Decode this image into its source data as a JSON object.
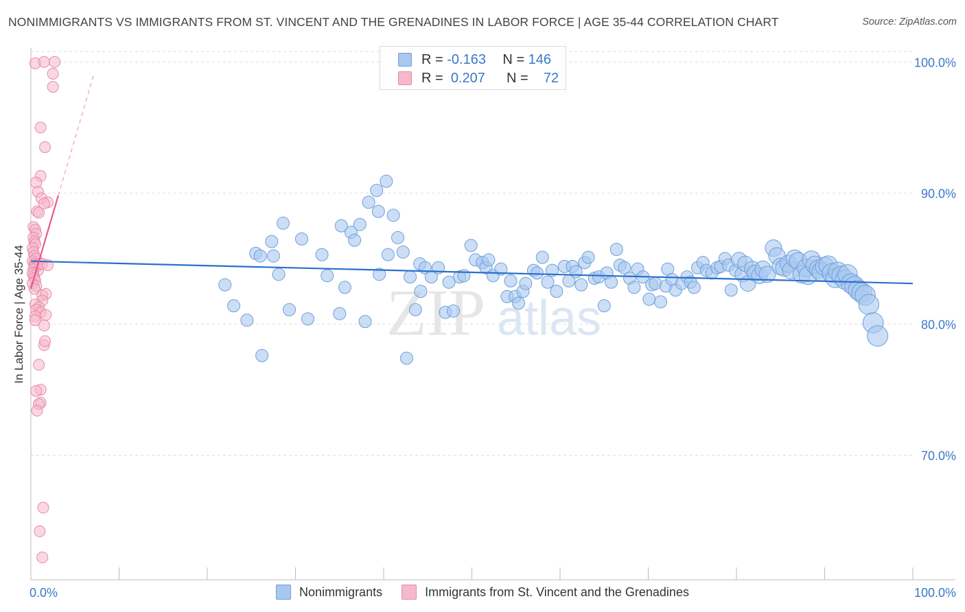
{
  "title": "NONIMMIGRANTS VS IMMIGRANTS FROM ST. VINCENT AND THE GRENADINES IN LABOR FORCE | AGE 35-44 CORRELATION CHART",
  "source": "Source: ZipAtlas.com",
  "watermark": {
    "zip": "ZIP",
    "atlas": "atlas"
  },
  "colors": {
    "blue_fill": "#a8c8f0",
    "blue_stroke": "#6e9fd8",
    "blue_line": "#2a6fcb",
    "pink_fill": "#f6b8cb",
    "pink_stroke": "#e88aa8",
    "pink_line": "#e8588a",
    "axis_label": "#3a78c9",
    "grid": "#dddddd"
  },
  "legend": {
    "series": [
      {
        "r_label": "R =",
        "r_value": "-0.163",
        "n_label": "N =",
        "n_value": "146"
      },
      {
        "r_label": "R =",
        "r_value": "0.207",
        "n_label": "N =",
        "n_value": "72"
      }
    ]
  },
  "chart_data": {
    "type": "scatter",
    "title": "NONIMMIGRANTS VS IMMIGRANTS FROM ST. VINCENT AND THE GRENADINES IN LABOR FORCE | AGE 35-44 CORRELATION CHART",
    "xlabel": "",
    "ylabel": "In Labor Force | Age 35-44",
    "xlim": [
      0,
      100
    ],
    "ylim": [
      60.5,
      100.8
    ],
    "x_tick_labels": [
      "0.0%",
      "100.0%"
    ],
    "y_ticks": [
      70,
      80,
      90,
      100
    ],
    "y_tick_labels": [
      "70.0%",
      "80.0%",
      "90.0%",
      "100.0%"
    ],
    "grid": "horizontal dashed",
    "legend_position": "top-center",
    "series": [
      {
        "name": "Nonimmigrants",
        "trend": {
          "x": [
            0,
            100
          ],
          "y": [
            84.8,
            83.1
          ]
        },
        "points": [
          [
            22,
            83
          ],
          [
            23,
            81.4
          ],
          [
            24.5,
            80.3
          ],
          [
            25.5,
            85.4
          ],
          [
            26,
            85.2
          ],
          [
            27.3,
            86.3
          ],
          [
            26.2,
            77.6
          ],
          [
            27.5,
            85.2
          ],
          [
            28.1,
            83.8
          ],
          [
            28.6,
            87.7
          ],
          [
            29.3,
            81.1
          ],
          [
            30.7,
            86.5
          ],
          [
            31.4,
            80.4
          ],
          [
            33,
            85.3
          ],
          [
            33.6,
            83.7
          ],
          [
            35,
            80.8
          ],
          [
            35.2,
            87.5
          ],
          [
            35.6,
            82.8
          ],
          [
            36.3,
            87
          ],
          [
            36.7,
            86.4
          ],
          [
            37.3,
            87.6
          ],
          [
            37.9,
            80.2
          ],
          [
            38.3,
            89.3
          ],
          [
            39.2,
            90.2
          ],
          [
            39.4,
            88.6
          ],
          [
            39.5,
            83.8
          ],
          [
            40.3,
            90.9
          ],
          [
            40.5,
            85.3
          ],
          [
            41.1,
            88.3
          ],
          [
            41.6,
            86.6
          ],
          [
            42.2,
            85.5
          ],
          [
            42.6,
            77.4
          ],
          [
            43,
            83.6
          ],
          [
            43.6,
            81.1
          ],
          [
            44.1,
            84.6
          ],
          [
            44.2,
            82.5
          ],
          [
            44.7,
            84.3
          ],
          [
            45.4,
            83.6
          ],
          [
            46.2,
            84.3
          ],
          [
            47,
            80.9
          ],
          [
            47.4,
            83.2
          ],
          [
            47.9,
            81
          ],
          [
            48.6,
            83.6
          ],
          [
            49.1,
            83.7
          ],
          [
            49.9,
            86
          ],
          [
            50.4,
            84.9
          ],
          [
            51.2,
            84.7
          ],
          [
            51.6,
            84.3
          ],
          [
            51.9,
            84.9
          ],
          [
            52.4,
            83.7
          ],
          [
            53.3,
            84.2
          ],
          [
            54,
            82.1
          ],
          [
            54.4,
            83.3
          ],
          [
            54.9,
            82.1
          ],
          [
            55.3,
            81.6
          ],
          [
            55.8,
            82.5
          ],
          [
            56.1,
            83.1
          ],
          [
            57,
            84.1
          ],
          [
            57.4,
            83.9
          ],
          [
            58,
            85.1
          ],
          [
            58.6,
            83.2
          ],
          [
            59.1,
            84.1
          ],
          [
            59.6,
            82.5
          ],
          [
            60.5,
            84.4
          ],
          [
            61,
            83.3
          ],
          [
            61.4,
            84.4
          ],
          [
            61.8,
            84
          ],
          [
            62.4,
            83
          ],
          [
            62.8,
            84.7
          ],
          [
            63.2,
            85.1
          ],
          [
            63.9,
            83.5
          ],
          [
            64.4,
            83.6
          ],
          [
            65,
            81.4
          ],
          [
            65.3,
            83.9
          ],
          [
            65.8,
            83.2
          ],
          [
            66.4,
            85.7
          ],
          [
            66.8,
            84.5
          ],
          [
            67.3,
            84.3
          ],
          [
            67.9,
            83.5
          ],
          [
            68.4,
            82.8
          ],
          [
            68.8,
            84.2
          ],
          [
            69.4,
            83.6
          ],
          [
            70.1,
            81.9
          ],
          [
            70.4,
            83
          ],
          [
            70.8,
            83.1
          ],
          [
            71.4,
            81.7
          ],
          [
            72,
            82.9
          ],
          [
            72.2,
            84.2
          ],
          [
            72.7,
            83.4
          ],
          [
            73.1,
            82.6
          ],
          [
            73.8,
            83.1
          ],
          [
            74.4,
            83.6
          ],
          [
            74.8,
            83.2
          ],
          [
            75.2,
            82.8
          ],
          [
            75.6,
            84.3
          ],
          [
            76.2,
            84.7
          ],
          [
            76.6,
            84.1
          ],
          [
            77.2,
            83.9
          ],
          [
            77.8,
            84.3
          ],
          [
            78.2,
            84.4
          ],
          [
            78.7,
            85
          ],
          [
            79.1,
            84.5
          ],
          [
            79.4,
            82.6
          ],
          [
            79.9,
            84.1
          ],
          [
            80.3,
            84.9
          ],
          [
            80.7,
            83.8
          ],
          [
            81,
            84.6
          ],
          [
            81.3,
            83.1
          ],
          [
            81.8,
            84.2
          ],
          [
            82.1,
            83.9
          ],
          [
            82.6,
            83.7
          ],
          [
            83,
            84.2
          ],
          [
            83.5,
            83.8
          ],
          [
            84.2,
            85.8
          ],
          [
            84.6,
            85.2
          ],
          [
            85,
            84.4
          ],
          [
            85.4,
            84.3
          ],
          [
            85.9,
            84.6
          ],
          [
            86.2,
            84.1
          ],
          [
            86.6,
            85
          ],
          [
            87,
            84.8
          ],
          [
            87.4,
            83.8
          ],
          [
            87.9,
            84.3
          ],
          [
            88.1,
            83.7
          ],
          [
            88.5,
            84.9
          ],
          [
            88.9,
            84.5
          ],
          [
            89.3,
            84.2
          ],
          [
            89.6,
            84
          ],
          [
            90,
            84.4
          ],
          [
            90.4,
            84.5
          ],
          [
            90.8,
            83.9
          ],
          [
            91.2,
            83.5
          ],
          [
            91.5,
            84
          ],
          [
            91.9,
            83.7
          ],
          [
            92.3,
            83.4
          ],
          [
            92.6,
            83.8
          ],
          [
            93,
            83.1
          ],
          [
            93.4,
            82.9
          ],
          [
            93.8,
            82.6
          ],
          [
            94.2,
            82.4
          ],
          [
            94.6,
            82.2
          ],
          [
            95,
            81.5
          ],
          [
            95.5,
            80.1
          ],
          [
            96,
            79.1
          ]
        ]
      },
      {
        "name": "Immigrants from St. Vincent and the Grenadines",
        "trend": {
          "x": [
            0,
            3.1
          ],
          "y": [
            82.7,
            89.8
          ]
        },
        "points": [
          [
            0.5,
            99.9
          ],
          [
            1.5,
            100
          ],
          [
            2.7,
            100
          ],
          [
            2.5,
            99.1
          ],
          [
            2.5,
            98.1
          ],
          [
            1.1,
            95
          ],
          [
            1.6,
            93.5
          ],
          [
            1.1,
            91.3
          ],
          [
            0.6,
            90.8
          ],
          [
            0.8,
            90.1
          ],
          [
            1.2,
            89.6
          ],
          [
            1.9,
            89.3
          ],
          [
            1.5,
            89.2
          ],
          [
            0.7,
            88.6
          ],
          [
            0.9,
            88.5
          ],
          [
            0.3,
            87.4
          ],
          [
            0.5,
            87.2
          ],
          [
            0.6,
            86.9
          ],
          [
            0.3,
            86.6
          ],
          [
            0.4,
            86.3
          ],
          [
            0.5,
            86.1
          ],
          [
            0.2,
            85.8
          ],
          [
            0.3,
            85.5
          ],
          [
            0.4,
            85.2
          ],
          [
            0.6,
            85
          ],
          [
            0.2,
            84.8
          ],
          [
            0.4,
            84.6
          ],
          [
            0.5,
            84.5
          ],
          [
            0.7,
            84.4
          ],
          [
            0.3,
            84.2
          ],
          [
            0.8,
            84.1
          ],
          [
            1,
            84.6
          ],
          [
            1.3,
            84.6
          ],
          [
            1.9,
            84.5
          ],
          [
            0.2,
            83.9
          ],
          [
            0.3,
            83.7
          ],
          [
            0.4,
            83.5
          ],
          [
            0.5,
            83.3
          ],
          [
            0.2,
            83.1
          ],
          [
            0.6,
            82.9
          ],
          [
            0.4,
            82.7
          ],
          [
            1.3,
            82.2
          ],
          [
            1.7,
            82.3
          ],
          [
            1.3,
            81.8
          ],
          [
            0.5,
            81.5
          ],
          [
            0.9,
            81.3
          ],
          [
            0.6,
            81.1
          ],
          [
            1.1,
            80.9
          ],
          [
            0.5,
            80.6
          ],
          [
            0.5,
            80.3
          ],
          [
            1.7,
            80.7
          ],
          [
            1.5,
            79.9
          ],
          [
            1.5,
            78.4
          ],
          [
            1.6,
            78.7
          ],
          [
            0.9,
            76.9
          ],
          [
            1.1,
            75
          ],
          [
            0.6,
            74.9
          ],
          [
            1.1,
            74
          ],
          [
            0.9,
            73.9
          ],
          [
            0.7,
            73.4
          ],
          [
            1.4,
            66
          ],
          [
            1.0,
            64.2
          ],
          [
            1.3,
            62.2
          ]
        ]
      }
    ]
  },
  "bottom_legend": [
    "Nonimmigrants",
    "Immigrants from St. Vincent and the Grenadines"
  ]
}
